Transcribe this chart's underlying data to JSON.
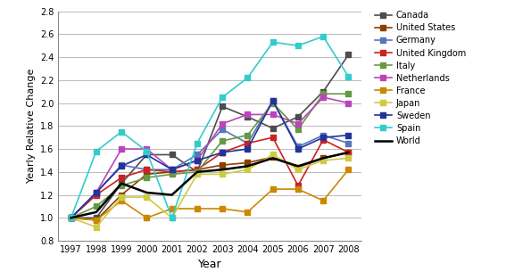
{
  "years": [
    1997,
    1998,
    1999,
    2000,
    2001,
    2002,
    2003,
    2004,
    2005,
    2006,
    2007,
    2008
  ],
  "series": {
    "Canada": {
      "values": [
        1.0,
        1.0,
        1.3,
        1.55,
        1.55,
        1.4,
        1.97,
        1.88,
        1.78,
        1.88,
        2.1,
        2.42
      ],
      "color": "#4d4d4d",
      "marker": "s",
      "linewidth": 1.2,
      "markersize": 4
    },
    "United States": {
      "values": [
        1.0,
        0.98,
        1.2,
        1.38,
        1.4,
        1.42,
        1.46,
        1.48,
        1.53,
        1.44,
        1.52,
        1.57
      ],
      "color": "#8B4000",
      "marker": "s",
      "linewidth": 1.2,
      "markersize": 4
    },
    "Germany": {
      "values": [
        1.0,
        1.22,
        1.46,
        1.42,
        1.42,
        1.55,
        1.77,
        1.65,
        2.02,
        1.62,
        1.72,
        1.65
      ],
      "color": "#5577bb",
      "marker": "s",
      "linewidth": 1.2,
      "markersize": 4
    },
    "United Kingdom": {
      "values": [
        1.0,
        1.2,
        1.35,
        1.42,
        1.4,
        1.42,
        1.57,
        1.65,
        1.7,
        1.28,
        1.68,
        1.57
      ],
      "color": "#cc2222",
      "marker": "s",
      "linewidth": 1.2,
      "markersize": 4
    },
    "Italy": {
      "values": [
        1.0,
        1.1,
        1.28,
        1.35,
        1.38,
        1.4,
        1.67,
        1.72,
        2.0,
        1.77,
        2.08,
        2.08
      ],
      "color": "#669944",
      "marker": "s",
      "linewidth": 1.2,
      "markersize": 4
    },
    "Netherlands": {
      "values": [
        1.0,
        1.22,
        1.6,
        1.6,
        1.42,
        1.5,
        1.82,
        1.9,
        1.9,
        1.82,
        2.05,
        2.0
      ],
      "color": "#bb44bb",
      "marker": "s",
      "linewidth": 1.2,
      "markersize": 4
    },
    "France": {
      "values": [
        1.0,
        0.98,
        1.15,
        1.0,
        1.08,
        1.08,
        1.08,
        1.05,
        1.25,
        1.25,
        1.15,
        1.42
      ],
      "color": "#cc8800",
      "marker": "s",
      "linewidth": 1.2,
      "markersize": 4
    },
    "Japan": {
      "values": [
        1.0,
        0.92,
        1.18,
        1.18,
        1.0,
        1.38,
        1.38,
        1.42,
        1.55,
        1.42,
        1.5,
        1.52
      ],
      "color": "#cccc44",
      "marker": "s",
      "linewidth": 1.2,
      "markersize": 4
    },
    "Sweden": {
      "values": [
        1.0,
        1.22,
        1.45,
        1.55,
        1.42,
        1.5,
        1.57,
        1.6,
        2.02,
        1.6,
        1.7,
        1.72
      ],
      "color": "#223399",
      "marker": "s",
      "linewidth": 1.2,
      "markersize": 4
    },
    "Spain": {
      "values": [
        1.0,
        1.58,
        1.75,
        1.58,
        1.0,
        1.65,
        2.05,
        2.22,
        2.53,
        2.5,
        2.58,
        2.23
      ],
      "color": "#33cccc",
      "marker": "s",
      "linewidth": 1.2,
      "markersize": 4
    },
    "World": {
      "values": [
        1.0,
        1.05,
        1.3,
        1.22,
        1.2,
        1.4,
        1.42,
        1.45,
        1.52,
        1.45,
        1.52,
        1.57
      ],
      "color": "#000000",
      "marker": null,
      "linewidth": 1.8,
      "markersize": 0
    }
  },
  "ylabel": "Yearly Relative Change",
  "xlabel": "Year",
  "ylim": [
    0.8,
    2.8
  ],
  "yticks": [
    0.8,
    1.0,
    1.2,
    1.4,
    1.6,
    1.8,
    2.0,
    2.2,
    2.4,
    2.6,
    2.8
  ],
  "legend_order": [
    "Canada",
    "United States",
    "Germany",
    "United Kingdom",
    "Italy",
    "Netherlands",
    "France",
    "Japan",
    "Sweden",
    "Spain",
    "World"
  ],
  "background_color": "#ffffff",
  "grid_color": "#bbbbbb"
}
